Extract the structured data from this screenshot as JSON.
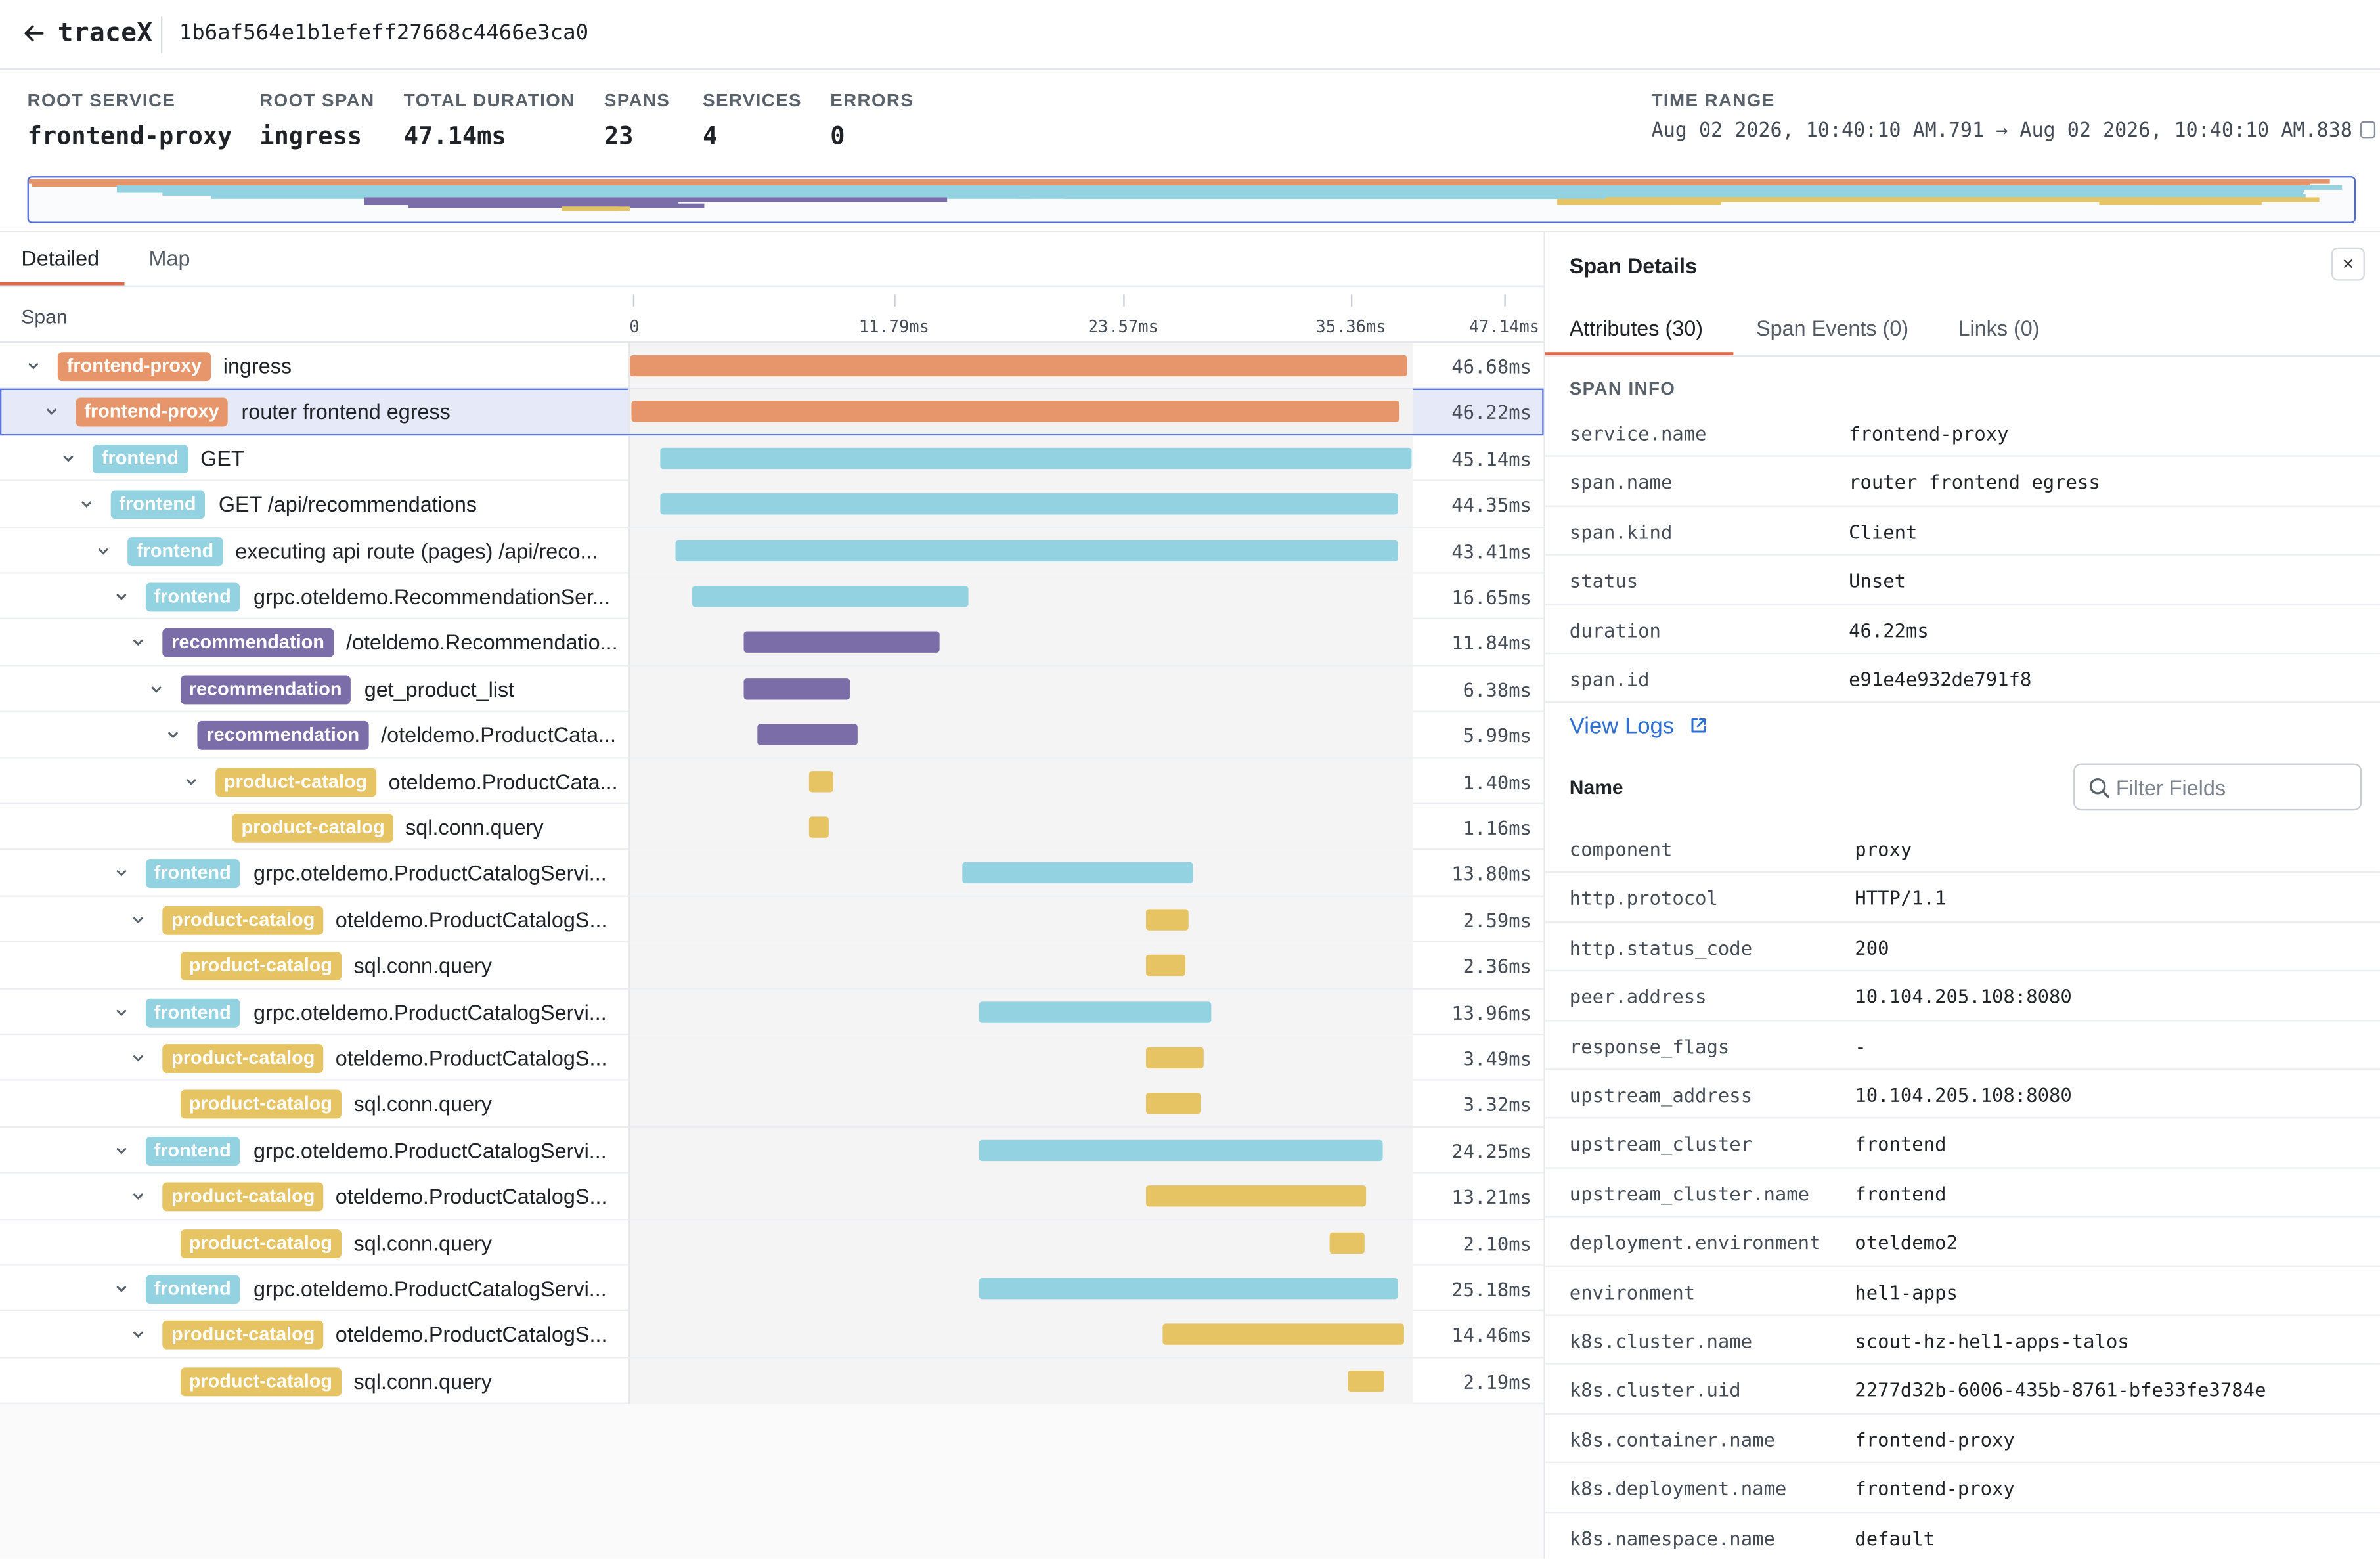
{
  "app": {
    "title": "traceX",
    "trace_id": "1b6af564e1b1efeff27668c4466e3ca0"
  },
  "summary": {
    "root_service": {
      "label": "ROOT SERVICE",
      "value": "frontend-proxy"
    },
    "root_span": {
      "label": "ROOT SPAN",
      "value": "ingress"
    },
    "total_duration": {
      "label": "TOTAL DURATION",
      "value": "47.14ms"
    },
    "spans": {
      "label": "SPANS",
      "value": "23"
    },
    "services": {
      "label": "SERVICES",
      "value": "4"
    },
    "errors": {
      "label": "ERRORS",
      "value": "0"
    },
    "time_range": {
      "label": "TIME RANGE",
      "value": "Aug 02 2026, 10:40:10 AM.791 → Aug 02 2026, 10:40:10 AM.838"
    }
  },
  "colors": {
    "frontend-proxy": "#e6966a",
    "frontend": "#93d2e0",
    "recommendation": "#7b6ea8",
    "product-catalog": "#e6c363",
    "accent": "#e2684a",
    "link": "#2f6fd1",
    "selection": "#5b74d8"
  },
  "tabs": [
    "Detailed",
    "Map"
  ],
  "active_tab": "Detailed",
  "grid": {
    "span_header": "Span",
    "ticks": [
      "0",
      "11.79ms",
      "23.57ms",
      "35.36ms",
      "47.14ms"
    ],
    "total_ms": 47.14
  },
  "spans": [
    {
      "depth": 0,
      "service": "frontend-proxy",
      "name": "ingress",
      "start_ms": 0.0,
      "duration_ms": 46.68,
      "duration_label": "46.68ms",
      "expanded": true
    },
    {
      "depth": 1,
      "service": "frontend-proxy",
      "name": "router frontend egress",
      "start_ms": 0.05,
      "duration_ms": 46.22,
      "duration_label": "46.22ms",
      "expanded": true,
      "selected": true
    },
    {
      "depth": 2,
      "service": "frontend",
      "name": "GET",
      "start_ms": 1.8,
      "duration_ms": 45.14,
      "duration_label": "45.14ms",
      "expanded": true
    },
    {
      "depth": 3,
      "service": "frontend",
      "name": "GET /api/recommendations",
      "start_ms": 1.8,
      "duration_ms": 44.35,
      "duration_label": "44.35ms",
      "expanded": true
    },
    {
      "depth": 4,
      "service": "frontend",
      "name": "executing api route (pages) /api/reco...",
      "start_ms": 2.7,
      "duration_ms": 43.41,
      "duration_label": "43.41ms",
      "expanded": true
    },
    {
      "depth": 5,
      "service": "frontend",
      "name": "grpc.oteldemo.RecommendationSer...",
      "start_ms": 3.7,
      "duration_ms": 16.65,
      "duration_label": "16.65ms",
      "expanded": true
    },
    {
      "depth": 6,
      "service": "recommendation",
      "name": "/oteldemo.Recommendatio...",
      "start_ms": 6.8,
      "duration_ms": 11.84,
      "duration_label": "11.84ms",
      "expanded": true
    },
    {
      "depth": 7,
      "service": "recommendation",
      "name": "get_product_list",
      "start_ms": 6.8,
      "duration_ms": 6.38,
      "duration_label": "6.38ms",
      "expanded": true
    },
    {
      "depth": 8,
      "service": "recommendation",
      "name": "/oteldemo.ProductCata...",
      "start_ms": 7.7,
      "duration_ms": 5.99,
      "duration_label": "5.99ms",
      "expanded": true
    },
    {
      "depth": 9,
      "service": "product-catalog",
      "name": "oteldemo.ProductCata...",
      "start_ms": 10.8,
      "duration_ms": 1.4,
      "duration_label": "1.40ms",
      "expanded": true
    },
    {
      "depth": 10,
      "service": "product-catalog",
      "name": "sql.conn.query",
      "start_ms": 10.8,
      "duration_ms": 1.16,
      "duration_label": "1.16ms",
      "leaf": true
    },
    {
      "depth": 5,
      "service": "frontend",
      "name": "grpc.oteldemo.ProductCatalogServi...",
      "start_ms": 20.0,
      "duration_ms": 13.8,
      "duration_label": "13.80ms",
      "expanded": true
    },
    {
      "depth": 6,
      "service": "product-catalog",
      "name": "oteldemo.ProductCatalogS...",
      "start_ms": 31.0,
      "duration_ms": 2.59,
      "duration_label": "2.59ms",
      "expanded": true
    },
    {
      "depth": 7,
      "service": "product-catalog",
      "name": "sql.conn.query",
      "start_ms": 31.0,
      "duration_ms": 2.36,
      "duration_label": "2.36ms",
      "leaf": true
    },
    {
      "depth": 5,
      "service": "frontend",
      "name": "grpc.oteldemo.ProductCatalogServi...",
      "start_ms": 21.0,
      "duration_ms": 13.96,
      "duration_label": "13.96ms",
      "expanded": true
    },
    {
      "depth": 6,
      "service": "product-catalog",
      "name": "oteldemo.ProductCatalogS...",
      "start_ms": 31.0,
      "duration_ms": 3.49,
      "duration_label": "3.49ms",
      "expanded": true
    },
    {
      "depth": 7,
      "service": "product-catalog",
      "name": "sql.conn.query",
      "start_ms": 31.0,
      "duration_ms": 3.32,
      "duration_label": "3.32ms",
      "leaf": true
    },
    {
      "depth": 5,
      "service": "frontend",
      "name": "grpc.oteldemo.ProductCatalogServi...",
      "start_ms": 21.0,
      "duration_ms": 24.25,
      "duration_label": "24.25ms",
      "expanded": true
    },
    {
      "depth": 6,
      "service": "product-catalog",
      "name": "oteldemo.ProductCatalogS...",
      "start_ms": 31.0,
      "duration_ms": 13.21,
      "duration_label": "13.21ms",
      "expanded": true
    },
    {
      "depth": 7,
      "service": "product-catalog",
      "name": "sql.conn.query",
      "start_ms": 42.0,
      "duration_ms": 2.1,
      "duration_label": "2.10ms",
      "leaf": true
    },
    {
      "depth": 5,
      "service": "frontend",
      "name": "grpc.oteldemo.ProductCatalogServi...",
      "start_ms": 21.0,
      "duration_ms": 25.18,
      "duration_label": "25.18ms",
      "expanded": true
    },
    {
      "depth": 6,
      "service": "product-catalog",
      "name": "oteldemo.ProductCatalogS...",
      "start_ms": 32.0,
      "duration_ms": 14.46,
      "duration_label": "14.46ms",
      "expanded": true
    },
    {
      "depth": 7,
      "service": "product-catalog",
      "name": "sql.conn.query",
      "start_ms": 43.1,
      "duration_ms": 2.19,
      "duration_label": "2.19ms",
      "leaf": true
    }
  ],
  "details": {
    "title": "Span Details",
    "close_label": "×",
    "tabs": [
      "Attributes (30)",
      "Span Events (0)",
      "Links (0)"
    ],
    "active_tab": "Attributes (30)",
    "section_label": "SPAN INFO",
    "span_info": [
      {
        "key": "service.name",
        "value": "frontend-proxy"
      },
      {
        "key": "span.name",
        "value": "router frontend egress"
      },
      {
        "key": "span.kind",
        "value": "Client"
      },
      {
        "key": "status",
        "value": "Unset"
      },
      {
        "key": "duration",
        "value": "46.22ms"
      },
      {
        "key": "span.id",
        "value": "e91e4e932de791f8"
      }
    ],
    "view_logs": "View Logs",
    "name_header": "Name",
    "filter_placeholder": "Filter Fields",
    "attributes": [
      {
        "key": "component",
        "value": "proxy"
      },
      {
        "key": "http.protocol",
        "value": "HTTP/1.1"
      },
      {
        "key": "http.status_code",
        "value": "200"
      },
      {
        "key": "peer.address",
        "value": "10.104.205.108:8080"
      },
      {
        "key": "response_flags",
        "value": "-"
      },
      {
        "key": "upstream_address",
        "value": "10.104.205.108:8080"
      },
      {
        "key": "upstream_cluster",
        "value": "frontend"
      },
      {
        "key": "upstream_cluster.name",
        "value": "frontend"
      },
      {
        "key": "deployment.environment",
        "value": "oteldemo2"
      },
      {
        "key": "environment",
        "value": "hel1-apps"
      },
      {
        "key": "k8s.cluster.name",
        "value": "scout-hz-hel1-apps-talos"
      },
      {
        "key": "k8s.cluster.uid",
        "value": "2277d32b-6006-435b-8761-bfe33fe3784e"
      },
      {
        "key": "k8s.container.name",
        "value": "frontend-proxy"
      },
      {
        "key": "k8s.deployment.name",
        "value": "frontend-proxy"
      },
      {
        "key": "k8s.namespace.name",
        "value": "default"
      }
    ]
  }
}
